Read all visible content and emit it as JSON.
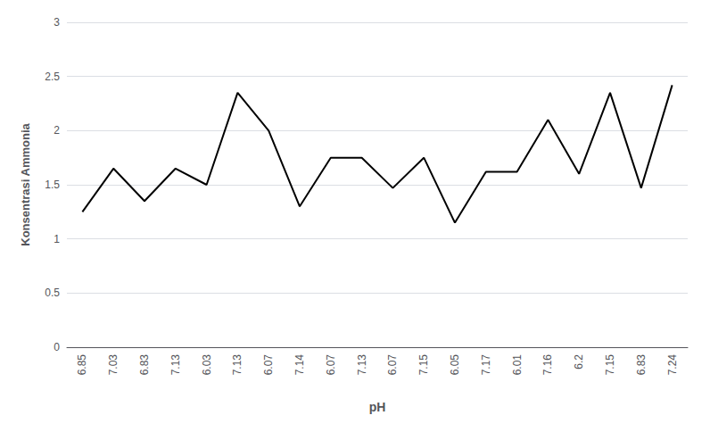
{
  "chart_data": {
    "type": "line",
    "categories": [
      "6.85",
      "7.03",
      "6.83",
      "7.13",
      "6.03",
      "7.13",
      "6.07",
      "7.14",
      "6.07",
      "7.13",
      "6.07",
      "7.15",
      "6.05",
      "7.17",
      "6.01",
      "7.16",
      "6.2",
      "7.15",
      "6.83",
      "7.24"
    ],
    "values": [
      1.25,
      1.65,
      1.35,
      1.65,
      1.5,
      2.35,
      2.0,
      1.3,
      1.75,
      1.75,
      1.47,
      1.75,
      1.15,
      1.62,
      1.62,
      2.1,
      1.6,
      2.35,
      1.47,
      2.42
    ],
    "xlabel": "pH",
    "ylabel": "Konsentrasi Ammonia",
    "color": "#000000",
    "ylim": [
      0,
      3
    ],
    "yticks": [
      0,
      0.5,
      1,
      1.5,
      2,
      2.5,
      3
    ],
    "grid": true
  }
}
